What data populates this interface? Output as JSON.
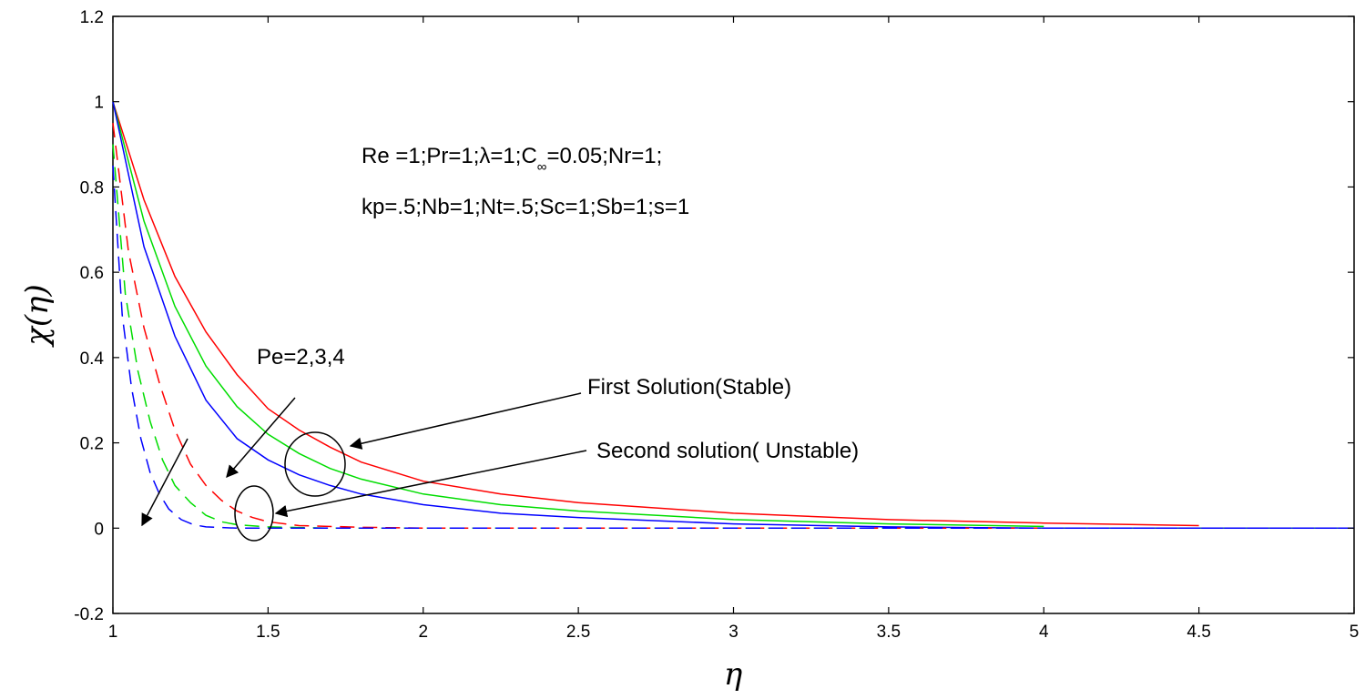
{
  "chart_data": {
    "type": "line",
    "xlabel": "η",
    "ylabel": "χ(η)",
    "xlim": [
      1,
      5
    ],
    "ylim": [
      -0.2,
      1.2
    ],
    "xticks": [
      "1",
      "1.5",
      "2",
      "2.5",
      "3",
      "3.5",
      "4",
      "4.5",
      "5"
    ],
    "yticks": [
      "-0.2",
      "0",
      "0.2",
      "0.4",
      "0.6",
      "0.8",
      "1",
      "1.2"
    ],
    "grid": false,
    "params": {
      "line1": {
        "main": "Re =1;Pr=1;λ=1;C",
        "sub": "∞",
        "tail": "=0.05;Nr=1;"
      },
      "line2": "kp=.5;Nb=1;Nt=.5;Sc=1;Sb=1;s=1"
    },
    "annotations": {
      "pe": "Pe=2,3,4",
      "first": "First Solution(Stable)",
      "second": "Second solution( Unstable)"
    },
    "series": [
      {
        "solution": "first",
        "color": "#ff0000",
        "style": "solid",
        "x": [
          1.0,
          1.1,
          1.2,
          1.3,
          1.4,
          1.5,
          1.6,
          1.7,
          1.8,
          2.0,
          2.25,
          2.5,
          3.0,
          3.5,
          4.0,
          4.5
        ],
        "y": [
          1.0,
          0.77,
          0.59,
          0.46,
          0.36,
          0.28,
          0.23,
          0.19,
          0.155,
          0.11,
          0.08,
          0.06,
          0.035,
          0.02,
          0.012,
          0.006
        ]
      },
      {
        "solution": "first",
        "color": "#00dd00",
        "style": "solid",
        "x": [
          1.0,
          1.1,
          1.2,
          1.3,
          1.4,
          1.5,
          1.6,
          1.7,
          1.8,
          2.0,
          2.25,
          2.5,
          3.0,
          3.5,
          4.0
        ],
        "y": [
          1.0,
          0.72,
          0.52,
          0.38,
          0.285,
          0.22,
          0.175,
          0.14,
          0.115,
          0.08,
          0.055,
          0.04,
          0.02,
          0.01,
          0.004
        ]
      },
      {
        "solution": "first",
        "color": "#0000ff",
        "style": "solid",
        "x": [
          1.0,
          1.1,
          1.2,
          1.3,
          1.4,
          1.5,
          1.6,
          1.7,
          1.8,
          2.0,
          2.25,
          2.5,
          3.0,
          3.5,
          4.0,
          5.0
        ],
        "y": [
          1.0,
          0.66,
          0.45,
          0.3,
          0.21,
          0.16,
          0.125,
          0.1,
          0.08,
          0.055,
          0.035,
          0.025,
          0.01,
          0.003,
          0.0,
          0.0
        ]
      },
      {
        "solution": "second",
        "color": "#ff0000",
        "style": "dashed",
        "x": [
          1.0,
          1.05,
          1.1,
          1.15,
          1.2,
          1.25,
          1.3,
          1.35,
          1.4,
          1.45,
          1.5,
          1.6,
          1.8,
          2.0,
          3.0,
          4.0
        ],
        "y": [
          0.95,
          0.65,
          0.47,
          0.34,
          0.23,
          0.15,
          0.1,
          0.065,
          0.04,
          0.025,
          0.015,
          0.006,
          0.002,
          0.0,
          0.0,
          0.0
        ]
      },
      {
        "solution": "second",
        "color": "#00dd00",
        "style": "dashed",
        "x": [
          1.0,
          1.04,
          1.08,
          1.12,
          1.16,
          1.2,
          1.25,
          1.3,
          1.35,
          1.4,
          1.5,
          1.7,
          2.0,
          3.0,
          4.0,
          5.0
        ],
        "y": [
          0.9,
          0.55,
          0.37,
          0.25,
          0.16,
          0.1,
          0.06,
          0.03,
          0.015,
          0.008,
          0.003,
          0.0,
          0.0,
          0.0,
          0.0,
          0.0
        ]
      },
      {
        "solution": "second",
        "color": "#0000ff",
        "style": "dashed",
        "x": [
          1.0,
          1.03,
          1.06,
          1.09,
          1.12,
          1.15,
          1.18,
          1.22,
          1.26,
          1.3,
          1.4,
          1.6,
          2.0,
          3.0,
          4.0,
          5.0
        ],
        "y": [
          0.85,
          0.5,
          0.33,
          0.21,
          0.13,
          0.08,
          0.045,
          0.02,
          0.008,
          0.003,
          0.0,
          0.0,
          0.0,
          0.0,
          0.0,
          0.0
        ]
      }
    ]
  }
}
